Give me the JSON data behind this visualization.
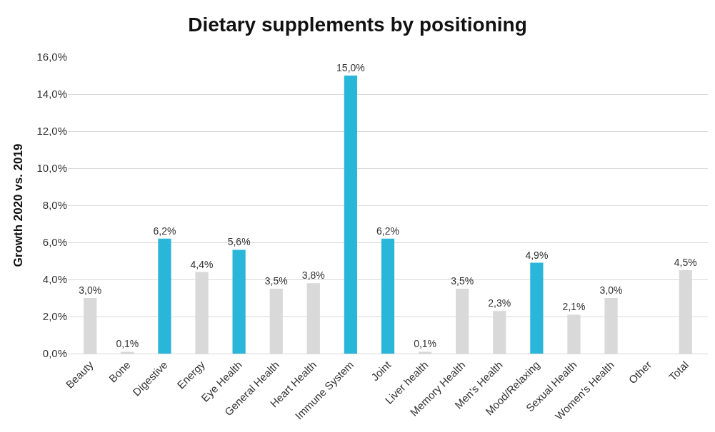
{
  "chart_data": {
    "type": "bar",
    "title": "Dietary supplements by positioning",
    "ylabel": "Growth 2020 vs. 2019",
    "categories": [
      "Beauty",
      "Bone",
      "Digestive",
      "Energy",
      "Eye Health",
      "General Health",
      "Heart Health",
      "Immune System",
      "Joint",
      "Liver health",
      "Memory Health",
      "Men's Health",
      "Mood/Relaxing",
      "Sexual Health",
      "Women's Health",
      "Other",
      "Total"
    ],
    "values": [
      3.0,
      0.1,
      6.2,
      4.4,
      5.6,
      3.5,
      3.8,
      15.0,
      6.2,
      0.1,
      3.5,
      2.3,
      4.9,
      2.1,
      3.0,
      null,
      4.5
    ],
    "value_labels": [
      "3,0%",
      "0,1%",
      "6,2%",
      "4,4%",
      "5,6%",
      "3,5%",
      "3,8%",
      "15,0%",
      "6,2%",
      "0,1%",
      "3,5%",
      "2,3%",
      "4,9%",
      "2,1%",
      "3,0%",
      null,
      "4,5%"
    ],
    "colors": [
      "#d9d9d9",
      "#d9d9d9",
      "#29b6d9",
      "#d9d9d9",
      "#29b6d9",
      "#d9d9d9",
      "#d9d9d9",
      "#29b6d9",
      "#29b6d9",
      "#d9d9d9",
      "#d9d9d9",
      "#d9d9d9",
      "#29b6d9",
      "#d9d9d9",
      "#d9d9d9",
      "#d9d9d9",
      "#d9d9d9"
    ],
    "ylim": [
      0,
      16
    ],
    "yticks": [
      {
        "value": 0,
        "label": "0,0%"
      },
      {
        "value": 2,
        "label": "2,0%"
      },
      {
        "value": 4,
        "label": "4,0%"
      },
      {
        "value": 6,
        "label": "6,0%"
      },
      {
        "value": 8,
        "label": "8,0%"
      },
      {
        "value": 10,
        "label": "10,0%"
      },
      {
        "value": 12,
        "label": "12,0%"
      },
      {
        "value": 14,
        "label": "14,0%"
      },
      {
        "value": 16,
        "label": "16,0%"
      }
    ],
    "grid": "y"
  }
}
